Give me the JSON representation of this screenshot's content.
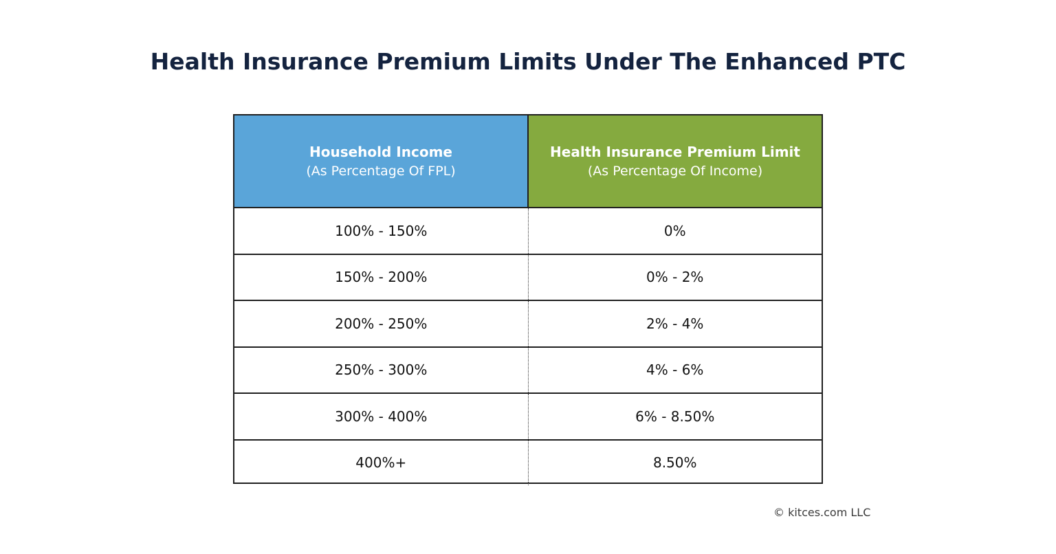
{
  "title": "Health Insurance Premium Limits Under The Enhanced PTC",
  "copyright": "© kitces.com LLC",
  "colors": {
    "title": "#14233f",
    "header_left_bg": "#5aa5d9",
    "header_right_bg": "#85aa3f",
    "border": "#1f1f1f"
  },
  "chart_data": {
    "type": "table",
    "title": "Health Insurance Premium Limits Under The Enhanced PTC",
    "columns": [
      {
        "label": "Household Income",
        "sublabel": "(As Percentage Of FPL)"
      },
      {
        "label": "Health Insurance Premium Limit",
        "sublabel": "(As Percentage Of Income)"
      }
    ],
    "rows": [
      [
        "100% - 150%",
        "0%"
      ],
      [
        "150% - 200%",
        "0% - 2%"
      ],
      [
        "200% - 250%",
        "2% - 4%"
      ],
      [
        "250% - 300%",
        "4% - 6%"
      ],
      [
        "300% - 400%",
        "6% - 8.50%"
      ],
      [
        "400%+",
        "8.50%"
      ]
    ]
  }
}
